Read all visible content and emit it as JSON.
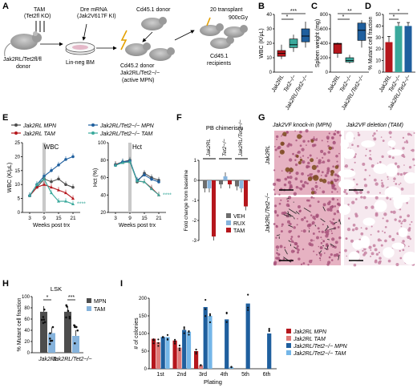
{
  "colors": {
    "jak2": "#b5161c",
    "jak2_tet2": "#1f5f9e",
    "teal": "#3aa99c",
    "mpn_grey": "#4d4d4d",
    "veh": "#6d6d6d",
    "rux": "#86b3dc",
    "tam": "#b5161c",
    "histo_pink": "#e8a9bd",
    "histo_brown": "#7a4a1c"
  },
  "panel_letters": {
    "A": "A",
    "B": "B",
    "C": "C",
    "D": "D",
    "E": "E",
    "F": "F",
    "G": "G",
    "H": "H",
    "I": "I"
  },
  "panel_a": {
    "tam": "TAM",
    "tam_sub": "(Tet2fl KO)",
    "dre": "Dre mRNA",
    "dre_sub": "(Jak2V617F KI)",
    "donor_geno": "Jak2RL/Tet2fl/fl",
    "donor_word": "donor",
    "linneg": "Lin-neg BM",
    "cd45_1_donor": "Cd45.1 donor",
    "secondary": "20 transplant",
    "dose": "900cGy",
    "cd45_2_donor": "Cd45.2 donor",
    "cd45_2_geno": "Jak2RL/Tet2−/−",
    "active": "(active MPN)",
    "recipients1": "Cd45.1",
    "recipients2": "recipients"
  },
  "chart_data": [
    {
      "id": "B",
      "type": "box",
      "ylabel": "WBC (K/μL)",
      "ylim": [
        0,
        40
      ],
      "yticks": [
        0,
        10,
        20,
        30,
        40
      ],
      "categories": [
        "Jak2RL",
        "Tet2−/−",
        "Jak2RL/Tet2−/−"
      ],
      "boxes": [
        {
          "min": 9,
          "q1": 11,
          "median": 13,
          "q3": 15,
          "max": 19
        },
        {
          "min": 14,
          "q1": 17,
          "median": 19,
          "q3": 23,
          "max": 26
        },
        {
          "min": 17,
          "q1": 21,
          "median": 25,
          "q3": 30,
          "max": 35
        }
      ],
      "significance": [
        {
          "label": "*"
        },
        {
          "label": "***"
        }
      ]
    },
    {
      "id": "C",
      "type": "box",
      "ylabel": "Spleen weight (mg)",
      "ylim": [
        0,
        800
      ],
      "yticks": [
        0,
        200,
        400,
        600,
        800
      ],
      "categories": [
        "Jak2RL",
        "Tet2−/−",
        "Jak2RL/Tet2−/−"
      ],
      "boxes": [
        {
          "min": 200,
          "q1": 260,
          "median": 390,
          "q3": 400,
          "max": 410
        },
        {
          "min": 120,
          "q1": 140,
          "median": 160,
          "q3": 200,
          "max": 240
        },
        {
          "min": 340,
          "q1": 440,
          "median": 580,
          "q3": 680,
          "max": 720
        }
      ],
      "significance": [
        {
          "label": "*"
        },
        {
          "label": "**"
        }
      ]
    },
    {
      "id": "D",
      "type": "bar",
      "ylabel": "% Mutant cell fraction",
      "ylim": [
        0,
        50
      ],
      "yticks": [
        0,
        10,
        20,
        30,
        40,
        50
      ],
      "categories": [
        "Jak2RL",
        "Tet2−/−",
        "Jak2RL/Tet2−/−"
      ],
      "values": [
        26,
        40,
        40
      ],
      "errors": [
        5,
        3,
        3
      ],
      "significance": [
        {
          "label": "*"
        },
        {
          "label": "*"
        }
      ]
    },
    {
      "id": "E1",
      "type": "line",
      "title": "WBC",
      "xlabel": "Weeks post trx",
      "ylabel": "WBC (K/μL)",
      "xticks": [
        3,
        9,
        15,
        21
      ],
      "ylim": [
        0,
        25
      ],
      "yticks": [
        0,
        5,
        10,
        15,
        20,
        25
      ],
      "x": [
        3,
        6,
        9,
        12,
        15,
        18,
        21
      ],
      "series": [
        {
          "name": "Jak2RL MPN",
          "values": [
            6,
            9,
            12,
            11,
            12,
            10,
            9
          ]
        },
        {
          "name": "Jak2RL TAM",
          "values": [
            6,
            9,
            10,
            9,
            8,
            7,
            5
          ]
        },
        {
          "name": "Jak2RL/Tet2−/− MPN",
          "values": [
            6,
            10,
            13,
            15,
            17,
            19,
            20
          ]
        },
        {
          "name": "Jak2RL/Tet2−/− TAM",
          "values": [
            6,
            10,
            12,
            7,
            4,
            4,
            3
          ]
        }
      ],
      "annotation": "****"
    },
    {
      "id": "E2",
      "type": "line",
      "title": "Hct",
      "xlabel": "Weeks post trx",
      "ylabel": "Hct (%)",
      "xticks": [
        3,
        9,
        15,
        21
      ],
      "ylim": [
        20,
        100
      ],
      "yticks": [
        20,
        40,
        60,
        80,
        100
      ],
      "x": [
        3,
        6,
        9,
        12,
        15,
        18,
        21
      ],
      "series": [
        {
          "name": "Jak2RL MPN",
          "values": [
            75,
            78,
            80,
            55,
            65,
            60,
            57
          ]
        },
        {
          "name": "Jak2RL TAM",
          "values": [
            75,
            77,
            78,
            56,
            55,
            48,
            40
          ]
        },
        {
          "name": "Jak2RL/Tet2−/− MPN",
          "values": [
            74,
            78,
            79,
            57,
            63,
            58,
            55
          ]
        },
        {
          "name": "Jak2RL/Tet2−/− TAM",
          "values": [
            74,
            77,
            78,
            56,
            55,
            47,
            40
          ]
        }
      ],
      "annotation": "****"
    },
    {
      "id": "F",
      "type": "bar",
      "title": "PB chimerism",
      "ylabel": "Fold change from baseline",
      "ylim": [
        -3,
        1
      ],
      "yticks": [
        -3,
        -2,
        -1,
        0,
        1
      ],
      "groups": [
        "Jak2RL",
        "Tet2−/−",
        "Jak2RL/Tet2−/−"
      ],
      "series": [
        {
          "name": "VEH",
          "values": [
            -0.4,
            -0.2,
            -0.3
          ]
        },
        {
          "name": "RUX",
          "values": [
            -0.4,
            0.2,
            -0.4
          ]
        },
        {
          "name": "TAM",
          "values": [
            -2.8,
            -0.2,
            -1.3
          ]
        }
      ]
    },
    {
      "id": "H",
      "type": "bar",
      "title": "LSK",
      "ylabel": "% Mutant cell fraction",
      "ylim": [
        0,
        100
      ],
      "yticks": [
        0,
        20,
        40,
        60,
        80,
        100
      ],
      "categories": [
        "Jak2RL",
        "Jak2RL/Tet2−/−"
      ],
      "series": [
        {
          "name": "MPN",
          "values": [
            73,
            73
          ]
        },
        {
          "name": "TAM",
          "values": [
            35,
            30
          ]
        }
      ],
      "significance": [
        {
          "label": "*"
        },
        {
          "label": "***"
        }
      ]
    },
    {
      "id": "I",
      "type": "bar",
      "xlabel": "Plating",
      "ylabel": "# of colonies",
      "ylim": [
        0,
        200
      ],
      "yticks": [
        0,
        50,
        100,
        150,
        200
      ],
      "categories": [
        "1st",
        "2nd",
        "3rd",
        "4th",
        "5th",
        "6th"
      ],
      "series": [
        {
          "name": "Jak2RL MPN",
          "values": [
            85,
            80,
            50,
            0,
            0,
            0
          ]
        },
        {
          "name": "Jak2RL TAM",
          "values": [
            75,
            60,
            10,
            0,
            0,
            0
          ]
        },
        {
          "name": "Jak2RL/Tet2−/− MPN",
          "values": [
            90,
            110,
            175,
            140,
            185,
            100
          ]
        },
        {
          "name": "Jak2RL/Tet2−/− TAM",
          "values": [
            90,
            105,
            150,
            5,
            0,
            0
          ]
        }
      ]
    }
  ],
  "panel_g": {
    "title_left": "Jak2VF knock-in (MPN)",
    "title_right": "Jak2VF deletion (TAM)",
    "row1": "Jak2RL",
    "row2": "Jak2RL/Tet2−/−"
  }
}
